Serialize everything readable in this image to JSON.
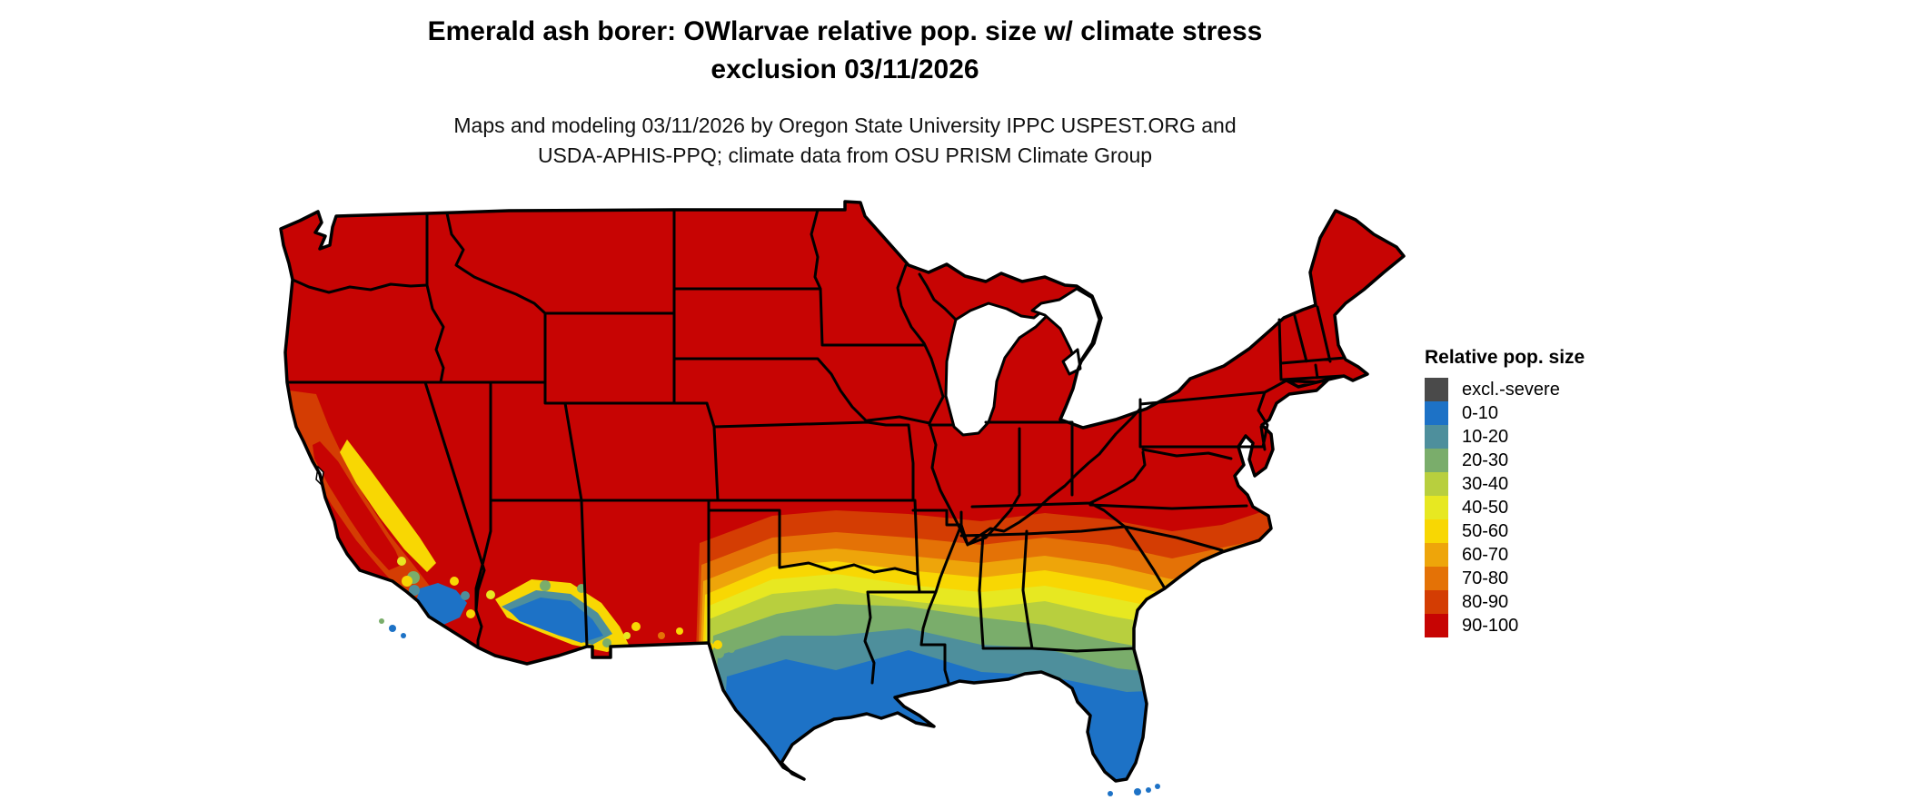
{
  "title": {
    "line1": "Emerald ash borer: OWlarvae relative pop. size w/ climate stress",
    "line2": "exclusion 03/11/2026"
  },
  "subtitle": {
    "line1": "Maps and modeling 03/11/2026 by Oregon State University IPPC USPEST.ORG and",
    "line2": "USDA-APHIS-PPQ; climate data from OSU PRISM Climate Group"
  },
  "legend": {
    "title": "Relative pop. size",
    "items": [
      {
        "label": "excl.-severe",
        "color": "#4a4a4a"
      },
      {
        "label": "0-10",
        "color": "#1d72c6"
      },
      {
        "label": "10-20",
        "color": "#4e8f9c"
      },
      {
        "label": "20-30",
        "color": "#7aad6b"
      },
      {
        "label": "30-40",
        "color": "#b8cf3e"
      },
      {
        "label": "40-50",
        "color": "#e7e821"
      },
      {
        "label": "50-60",
        "color": "#f8d703"
      },
      {
        "label": "60-70",
        "color": "#eea50a"
      },
      {
        "label": "70-80",
        "color": "#e47206"
      },
      {
        "label": "80-90",
        "color": "#d43d03"
      },
      {
        "label": "90-100",
        "color": "#c70403"
      }
    ]
  },
  "map": {
    "region": "Continental United States",
    "variable": "Relative population size (%), overwintering larvae, with climate stress exclusion",
    "date": "03/11/2026",
    "dominant_class": "90-100",
    "gradient_note": "Values decrease from north (90-100, red) to the Gulf Coast, south Texas and Florida (0-10, blue); mountain areas of California and Arizona also show low values.",
    "background_color": "#ffffff",
    "border_color": "#000000",
    "water_color": "#ffffff"
  }
}
